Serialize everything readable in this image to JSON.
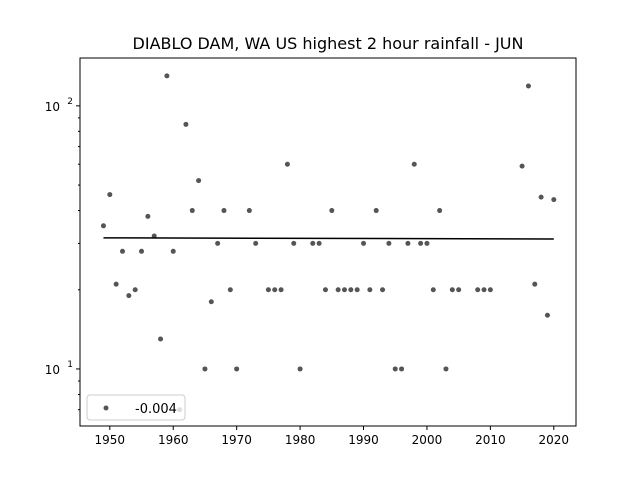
{
  "chart_data": {
    "type": "scatter",
    "title": "DIABLO DAM, WA US highest 2 hour rainfall - JUN",
    "xlabel": "",
    "ylabel": "",
    "xscale": "linear",
    "yscale": "log",
    "xlim": [
      1945.3,
      2023.5
    ],
    "ylim": [
      6.07,
      152
    ],
    "xticks": [
      1950,
      1960,
      1970,
      1980,
      1990,
      2000,
      2010,
      2020
    ],
    "xtick_labels": [
      "1950",
      "1960",
      "1970",
      "1980",
      "1990",
      "2000",
      "2010",
      "2020"
    ],
    "yticks_major": [
      10,
      100
    ],
    "ytick_labels": [
      {
        "base": "10",
        "exp": "1"
      },
      {
        "base": "10",
        "exp": "2"
      }
    ],
    "yticks_minor": [
      7,
      8,
      9,
      20,
      30,
      40,
      50,
      60,
      70,
      80,
      90
    ],
    "grid": false,
    "point_color": "#555555",
    "trend_color": "#000000",
    "series": [
      {
        "name": "-0.004",
        "x": [
          1949,
          1950,
          1951,
          1952,
          1953,
          1954,
          1955,
          1956,
          1957,
          1958,
          1959,
          1960,
          1961,
          1962,
          1963,
          1964,
          1965,
          1966,
          1967,
          1968,
          1969,
          1970,
          1972,
          1973,
          1975,
          1976,
          1977,
          1978,
          1979,
          1980,
          1982,
          1983,
          1984,
          1985,
          1986,
          1987,
          1988,
          1989,
          1990,
          1991,
          1992,
          1993,
          1994,
          1995,
          1996,
          1997,
          1998,
          1999,
          2000,
          2001,
          2002,
          2003,
          2004,
          2005,
          2008,
          2009,
          2010,
          2015,
          2016,
          2017,
          2018,
          2019,
          2020
        ],
        "y": [
          35,
          46,
          21,
          28,
          19,
          20,
          28,
          38,
          32,
          13,
          130,
          28,
          7,
          85,
          40,
          52,
          10,
          18,
          30,
          40,
          20,
          10,
          40,
          30,
          20,
          20,
          20,
          60,
          30,
          10,
          30,
          30,
          20,
          40,
          20,
          20,
          20,
          20,
          30,
          20,
          40,
          20,
          30,
          10,
          10,
          30,
          60,
          30,
          30,
          20,
          40,
          10,
          20,
          20,
          20,
          20,
          20,
          59,
          119,
          21,
          45,
          16,
          44
        ]
      }
    ],
    "trend": {
      "x": [
        1949,
        2020
      ],
      "y": [
        31.5,
        31.2
      ],
      "slope_label": "-0.004"
    },
    "legend": {
      "placement": "lower-left",
      "entries": [
        "-0.004"
      ]
    }
  }
}
